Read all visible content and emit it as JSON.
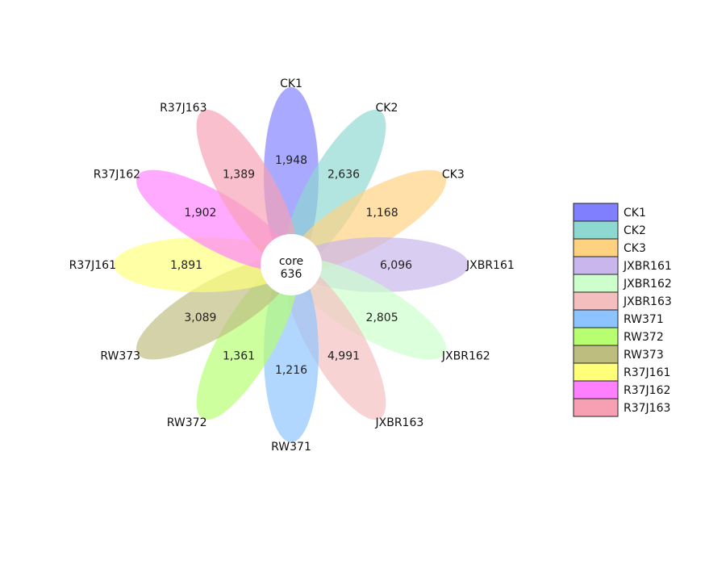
{
  "chart_data": {
    "type": "flower",
    "core": {
      "label": "core",
      "value": 636
    },
    "petals": [
      {
        "name": "CK1",
        "value": 1948,
        "color": "#8080FF"
      },
      {
        "name": "CK2",
        "value": 2636,
        "color": "#8ED8D2"
      },
      {
        "name": "CK3",
        "value": 1168,
        "color": "#FFD280"
      },
      {
        "name": "JXBR161",
        "value": 6096,
        "color": "#C8B6EC"
      },
      {
        "name": "JXBR162",
        "value": 2805,
        "color": "#CCFFCC"
      },
      {
        "name": "JXBR163",
        "value": 4991,
        "color": "#F5BEBE"
      },
      {
        "name": "RW371",
        "value": 1216,
        "color": "#8CC4FF"
      },
      {
        "name": "RW372",
        "value": 1361,
        "color": "#B7FF70"
      },
      {
        "name": "RW373",
        "value": 3089,
        "color": "#BEBD80"
      },
      {
        "name": "R37J161",
        "value": 1891,
        "color": "#FFFF7A"
      },
      {
        "name": "R37J162",
        "value": 1902,
        "color": "#FF80FF"
      },
      {
        "name": "R37J163",
        "value": 1389,
        "color": "#F7A0B4"
      }
    ],
    "legend": {
      "position": "right"
    }
  }
}
